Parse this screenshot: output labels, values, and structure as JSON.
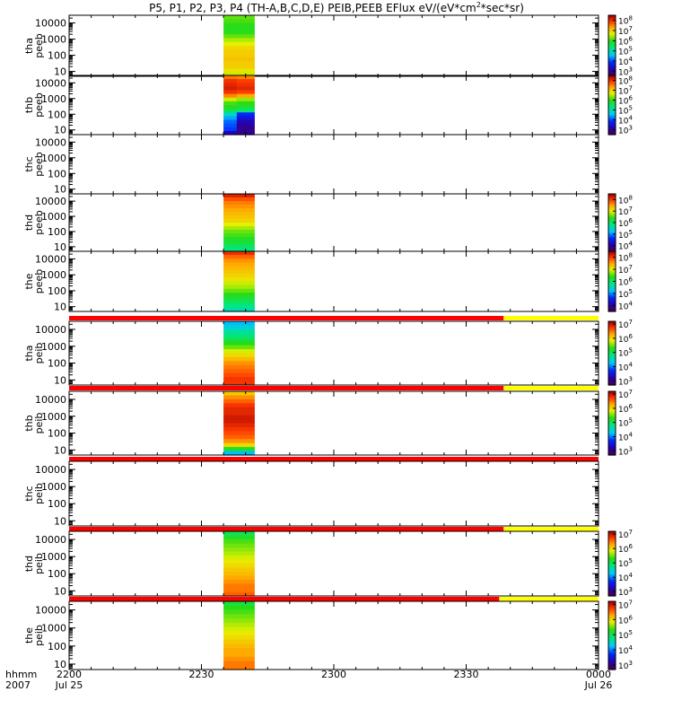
{
  "title": "P5, P1, P2, P3, P4 (TH-A,B,C,D,E) PEIB,PEEB EFlux eV/(eV*cm",
  "title_superscript": "2",
  "title_tail": "*sec*sr)",
  "footer": {
    "left_top": "hhmm",
    "left_bottom": "2007",
    "ticks": [
      {
        "label": "2200",
        "sub": "Jul 25"
      },
      {
        "label": "2230",
        "sub": ""
      },
      {
        "label": "2300",
        "sub": ""
      },
      {
        "label": "2330",
        "sub": ""
      },
      {
        "label": "0000",
        "sub": "Jul 26"
      }
    ]
  },
  "chart_data": {
    "type": "heatmap",
    "x_axis": {
      "unit": "hhmm",
      "range_minutes": [
        0,
        120
      ],
      "tick_minutes": [
        0,
        30,
        60,
        90,
        120
      ],
      "minor_ticks_per_major": 6
    },
    "y_axis": {
      "log": true,
      "range": [
        5,
        30000
      ],
      "tick_values": [
        10,
        100,
        1000,
        10000
      ],
      "tick_labels": [
        "10",
        "100",
        "1000",
        "10000"
      ]
    },
    "panels": [
      {
        "name": "tha peeb",
        "ylabel_top": "tha",
        "ylabel_bottom": "peeb",
        "data_minutes": [
          35,
          42
        ],
        "colorbar": {
          "exponents": [
            3,
            4,
            5,
            6,
            7,
            8
          ],
          "range": [
            2.5,
            8.5
          ]
        },
        "bar_above": null,
        "columns": [
          {
            "x": [
              35,
              42
            ],
            "levels": [
              6.2,
              6.1,
              6.0,
              5.9,
              6.0,
              6.2,
              6.5,
              6.7,
              6.9,
              7.0,
              7.0,
              7.1,
              7.0,
              7.0,
              6.8,
              6.6
            ]
          }
        ]
      },
      {
        "name": "thb peeb",
        "ylabel_top": "thb",
        "ylabel_bottom": "peeb",
        "data_minutes": [
          35,
          42
        ],
        "colorbar": {
          "exponents": [
            3,
            4,
            5,
            6,
            7,
            8
          ],
          "range": [
            2.5,
            8.5
          ]
        },
        "bar_above": null,
        "columns": [
          {
            "x": [
              35,
              38
            ],
            "levels": [
              7.6,
              8.0,
              8.1,
              8.2,
              8.0,
              7.5,
              6.6,
              6.1,
              5.9,
              5.6,
              4.9,
              4.4,
              4.1,
              4.0,
              3.9,
              3.2
            ]
          },
          {
            "x": [
              38,
              42
            ],
            "levels": [
              7.5,
              7.9,
              8.0,
              8.1,
              7.9,
              7.3,
              6.4,
              6.0,
              5.8,
              5.4,
              3.8,
              3.5,
              3.2,
              3.0,
              2.9,
              2.9
            ]
          }
        ]
      },
      {
        "name": "thc peeb",
        "ylabel_top": "thc",
        "ylabel_bottom": "peeb",
        "data_minutes": null,
        "colorbar": null,
        "bar_above": null,
        "columns": []
      },
      {
        "name": "thd peeb",
        "ylabel_top": "thd",
        "ylabel_bottom": "peeb",
        "data_minutes": [
          35,
          42
        ],
        "colorbar": {
          "exponents": [
            4,
            5,
            6,
            7,
            8
          ],
          "range": [
            3.5,
            8.5
          ]
        },
        "bar_above": null,
        "columns": [
          {
            "x": [
              35,
              42
            ],
            "levels": [
              8.2,
              7.9,
              7.7,
              7.6,
              7.5,
              7.4,
              7.3,
              7.2,
              7.0,
              6.8,
              6.6,
              6.5,
              6.3,
              6.2,
              6.0,
              5.8
            ]
          }
        ]
      },
      {
        "name": "the peeb",
        "ylabel_top": "the",
        "ylabel_bottom": "peeb",
        "data_minutes": [
          35,
          42
        ],
        "colorbar": {
          "exponents": [
            4,
            5,
            6,
            7,
            8
          ],
          "range": [
            3.5,
            8.5
          ]
        },
        "bar_above": null,
        "columns": [
          {
            "x": [
              35,
              42
            ],
            "levels": [
              8.1,
              7.8,
              7.6,
              7.5,
              7.4,
              7.3,
              7.2,
              7.1,
              6.9,
              6.8,
              6.6,
              6.4,
              6.2,
              6.0,
              5.8,
              5.6
            ]
          }
        ]
      },
      {
        "name": "tha peib",
        "ylabel_top": "tha",
        "ylabel_bottom": "peib",
        "data_minutes": [
          35,
          42
        ],
        "colorbar": {
          "exponents": [
            3,
            4,
            5,
            6,
            7
          ],
          "range": [
            2.7,
            7.2
          ]
        },
        "bar_above": {
          "red_until_minute": 98.5,
          "yellow_until_minute": 120
        },
        "columns": [
          {
            "x": [
              35,
              42
            ],
            "levels": [
              4.2,
              4.4,
              4.6,
              4.8,
              5.0,
              5.3,
              5.5,
              5.8,
              6.0,
              6.2,
              6.4,
              6.5,
              6.6,
              6.7,
              6.8,
              6.8
            ]
          }
        ]
      },
      {
        "name": "thb peib",
        "ylabel_top": "thb",
        "ylabel_bottom": "peib",
        "data_minutes": [
          35,
          42
        ],
        "colorbar": {
          "exponents": [
            3,
            4,
            5,
            6,
            7
          ],
          "range": [
            2.7,
            7.2
          ]
        },
        "bar_above": {
          "red_until_minute": 98.5,
          "yellow_until_minute": 120
        },
        "columns": [
          {
            "x": [
              35,
              42
            ],
            "levels": [
              6.1,
              6.4,
              6.6,
              6.8,
              6.9,
              6.9,
              7.0,
              7.0,
              6.9,
              6.8,
              6.7,
              6.6,
              6.4,
              6.0,
              5.2,
              4.2
            ]
          }
        ]
      },
      {
        "name": "thc peib",
        "ylabel_top": "thc",
        "ylabel_bottom": "peib",
        "data_minutes": null,
        "colorbar": null,
        "bar_above": {
          "red_until_minute": 120,
          "yellow_until_minute": 120
        },
        "columns": []
      },
      {
        "name": "thd peib",
        "ylabel_top": "thd",
        "ylabel_bottom": "peib",
        "data_minutes": [
          35,
          42
        ],
        "colorbar": {
          "exponents": [
            3,
            4,
            5,
            6,
            7
          ],
          "range": [
            2.7,
            7.2
          ]
        },
        "bar_above": {
          "red_until_minute": 98.5,
          "yellow_until_minute": 120
        },
        "columns": [
          {
            "x": [
              35,
              42
            ],
            "levels": [
              5.0,
              5.2,
              5.4,
              5.5,
              5.6,
              5.7,
              5.8,
              5.9,
              6.0,
              6.1,
              6.2,
              6.3,
              6.4,
              6.5,
              6.5,
              6.6
            ]
          }
        ]
      },
      {
        "name": "the peib",
        "ylabel_top": "the",
        "ylabel_bottom": "peib",
        "data_minutes": [
          35,
          42
        ],
        "colorbar": {
          "exponents": [
            3,
            4,
            5,
            6,
            7
          ],
          "range": [
            2.7,
            7.2
          ]
        },
        "bar_above": {
          "red_until_minute": 97.5,
          "yellow_until_minute": 120
        },
        "columns": [
          {
            "x": [
              35,
              42
            ],
            "levels": [
              5.1,
              5.3,
              5.4,
              5.5,
              5.6,
              5.7,
              5.8,
              5.9,
              6.0,
              6.1,
              6.2,
              6.3,
              6.3,
              6.4,
              6.5,
              6.5
            ]
          }
        ]
      }
    ]
  }
}
